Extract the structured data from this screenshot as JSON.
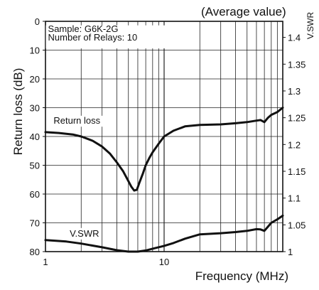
{
  "chart_data": {
    "type": "line",
    "title": "(Average value)",
    "xlabel": "Frequency (MHz)",
    "ylabel": "Return loss (dB)",
    "y2label": "V.SWR",
    "xscale": "log",
    "xlim": [
      1,
      100
    ],
    "ylim": [
      80,
      0
    ],
    "y2lim": [
      1.0,
      1.43
    ],
    "grid": true,
    "x_ticks": [
      "1",
      "10"
    ],
    "y_ticks": [
      "0",
      "10",
      "20",
      "30",
      "40",
      "50",
      "60",
      "70",
      "80"
    ],
    "y_tick_values": [
      0,
      10,
      20,
      30,
      40,
      50,
      60,
      70,
      80
    ],
    "y2_ticks": [
      "1.4",
      "1.35",
      "1.3",
      "1.25",
      "1.2",
      "1.15",
      "1.1",
      "1.05",
      "1"
    ],
    "y2_tick_values": [
      1.4,
      1.35,
      1.3,
      1.25,
      1.2,
      1.15,
      1.1,
      1.05,
      1.0
    ],
    "annotation": [
      "Sample: G6K-2G",
      "Number of Relays: 10"
    ],
    "series": [
      {
        "name": "Return loss",
        "axis": "left",
        "x": [
          1,
          1.3,
          1.7,
          2,
          2.5,
          3,
          3.5,
          4,
          4.5,
          5,
          5.3,
          5.6,
          5.9,
          6.2,
          6.6,
          7,
          7.5,
          8,
          9,
          10,
          12,
          15,
          20,
          30,
          40,
          50,
          60,
          65,
          70,
          75,
          80,
          90,
          100
        ],
        "y": [
          38.5,
          38.8,
          39.3,
          40,
          41.5,
          43.5,
          46,
          49,
          52,
          55.5,
          57.5,
          58.8,
          58.5,
          56,
          53,
          50,
          47.5,
          45.5,
          42.5,
          40,
          38,
          36.5,
          36,
          35.8,
          35.4,
          35,
          34.5,
          34.3,
          35,
          33.5,
          32.5,
          31.5,
          30
        ]
      },
      {
        "name": "V.SWR",
        "axis": "left",
        "x": [
          1,
          1.5,
          2,
          3,
          4,
          5,
          6,
          7,
          8,
          10,
          12,
          15,
          20,
          30,
          40,
          50,
          60,
          65,
          70,
          80,
          90,
          100
        ],
        "y": [
          76,
          76.5,
          77.2,
          78.5,
          79.5,
          80,
          80,
          79.6,
          79,
          78,
          77,
          75.5,
          74,
          73.6,
          73.2,
          72.8,
          72.2,
          72.3,
          72.8,
          70,
          68.8,
          67.5
        ]
      }
    ],
    "series_labels": [
      "Return loss",
      "V.SWR"
    ]
  }
}
